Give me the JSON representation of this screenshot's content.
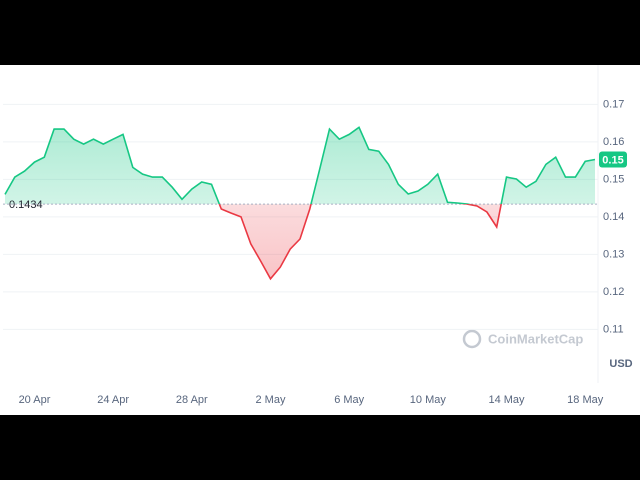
{
  "chart_data": {
    "type": "line",
    "watermark": "CoinMarketCap",
    "currency": "USD",
    "price_label": "0.15",
    "baseline": 0.1434,
    "up_color": "#16c784",
    "down_color": "#ea3943",
    "grid": true,
    "x": [
      -1.5,
      -1,
      -0.5,
      0,
      0.5,
      1,
      1.5,
      2,
      2.5,
      3,
      3.5,
      4,
      4.5,
      5,
      5.5,
      6,
      6.5,
      7,
      7.5,
      8,
      8.5,
      9,
      9.5,
      10,
      10.5,
      11,
      11.5,
      12,
      12.5,
      13,
      13.5,
      14,
      14.5,
      15,
      15.5,
      16,
      16.5,
      17,
      17.5,
      18,
      18.5,
      19,
      19.5,
      20,
      20.5,
      21,
      21.5,
      22,
      22.5,
      23,
      23.5,
      24,
      24.5,
      25,
      25.5,
      26,
      26.5,
      27,
      27.5,
      28,
      28.5
    ],
    "series": [
      {
        "values": [
          0.146,
          0.1506,
          0.1522,
          0.1546,
          0.1559,
          0.1634,
          0.1634,
          0.1607,
          0.1594,
          0.1607,
          0.1594,
          0.1607,
          0.162,
          0.1532,
          0.1514,
          0.1506,
          0.1506,
          0.1479,
          0.1447,
          0.1474,
          0.1493,
          0.1487,
          0.1421,
          0.141,
          0.14,
          0.1328,
          0.1282,
          0.1235,
          0.1266,
          0.1314,
          0.1341,
          0.1421,
          0.1527,
          0.1634,
          0.1607,
          0.162,
          0.1639,
          0.158,
          0.1575,
          0.154,
          0.1487,
          0.1461,
          0.1469,
          0.1487,
          0.1514,
          0.1439,
          0.1437,
          0.1434,
          0.1429,
          0.1413,
          0.1373,
          0.1506,
          0.1501,
          0.1479,
          0.1495,
          0.154,
          0.1559,
          0.1506,
          0.1506,
          0.1548,
          0.1553
        ]
      }
    ],
    "xlim": [
      -1.6,
      28.6
    ],
    "xticks": [
      {
        "value": 0,
        "label": "20 Apr"
      },
      {
        "value": 4,
        "label": "24 Apr"
      },
      {
        "value": 8,
        "label": "28 Apr"
      },
      {
        "value": 12,
        "label": "2 May"
      },
      {
        "value": 16,
        "label": "6 May"
      },
      {
        "value": 20,
        "label": "10 May"
      },
      {
        "value": 24,
        "label": "14 May"
      },
      {
        "value": 28,
        "label": "18 May"
      }
    ],
    "ylim": [
      0.0965,
      0.1805
    ],
    "yticks": [
      0.11,
      0.12,
      0.13,
      0.14,
      0.15,
      0.16,
      0.17
    ]
  }
}
